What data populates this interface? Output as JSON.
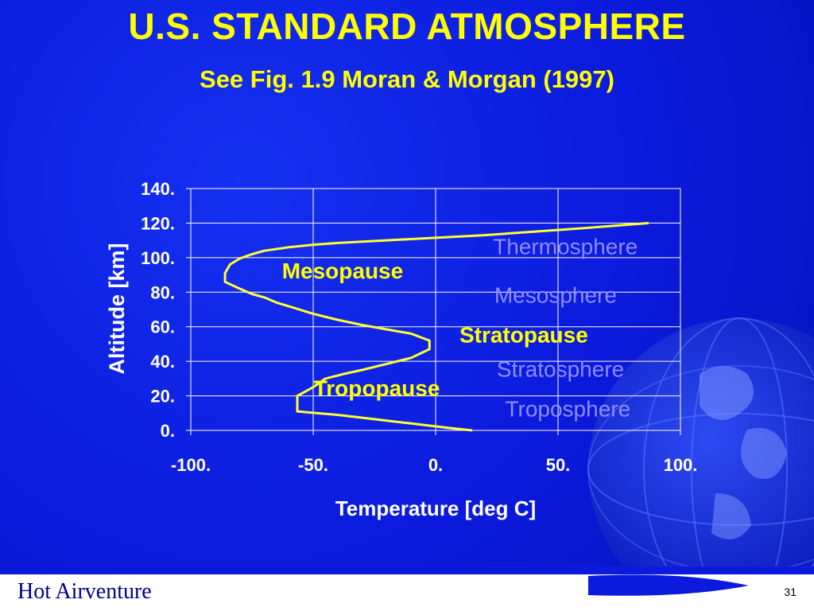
{
  "slide": {
    "title": "U.S. STANDARD ATMOSPHERE",
    "subtitle": "See Fig. 1.9 Moran & Morgan (1997)",
    "footer_title": "Hot Airventure",
    "page_number": "31"
  },
  "colors": {
    "background": "#0b1adc",
    "title": "#ffff00",
    "curve": "#ffff33",
    "layer_label": "#8c8cff",
    "pause_label": "#ffff00"
  },
  "chart_data": {
    "type": "line",
    "xlabel": "Temperature [deg C]",
    "ylabel": "Altitude [km]",
    "xlim": [
      -100,
      100
    ],
    "ylim": [
      0,
      140
    ],
    "x_ticks": [
      "-100.",
      "-50.",
      "0.",
      "50.",
      "100."
    ],
    "y_ticks": [
      "0.",
      "20.",
      "40.",
      "60.",
      "80.",
      "100.",
      "120.",
      "140."
    ],
    "grid": true,
    "series": [
      {
        "x": [
          15,
          5,
          -10,
          -25,
          -40,
          -56.5,
          -56.5,
          -50,
          -45,
          -38,
          -30,
          -20,
          -10,
          -2.5,
          -2.5,
          -10,
          -20,
          -30,
          -40,
          -50,
          -58,
          -65,
          -70,
          -75,
          -80,
          -86,
          -86,
          -84,
          -80,
          -75,
          -70,
          -60,
          -50,
          -40,
          -20,
          0,
          20,
          60,
          87
        ],
        "y": [
          0,
          1.5,
          4,
          6.5,
          9,
          11,
          20,
          25,
          30,
          32.5,
          35,
          38.5,
          42,
          47,
          52,
          56,
          58.5,
          61,
          64,
          67.5,
          71,
          74,
          77,
          79,
          82,
          86,
          91,
          96,
          99.5,
          102,
          104,
          106,
          107.5,
          108.5,
          110,
          111.5,
          113,
          117,
          120
        ]
      }
    ],
    "annotations": [
      {
        "text": "Thermosphere",
        "style": "layer",
        "x": 53,
        "y": 102
      },
      {
        "text": "Mesosphere",
        "style": "layer",
        "x": 49,
        "y": 74
      },
      {
        "text": "Stratosphere",
        "style": "layer",
        "x": 51,
        "y": 31
      },
      {
        "text": "Troposphere",
        "style": "layer",
        "x": 54,
        "y": 8
      },
      {
        "text": "Mesopause",
        "style": "pause",
        "x": -38,
        "y": 88
      },
      {
        "text": "Stratopause",
        "style": "pause",
        "x": 36,
        "y": 51
      },
      {
        "text": "Tropopause",
        "style": "pause",
        "x": -24,
        "y": 20
      }
    ]
  }
}
